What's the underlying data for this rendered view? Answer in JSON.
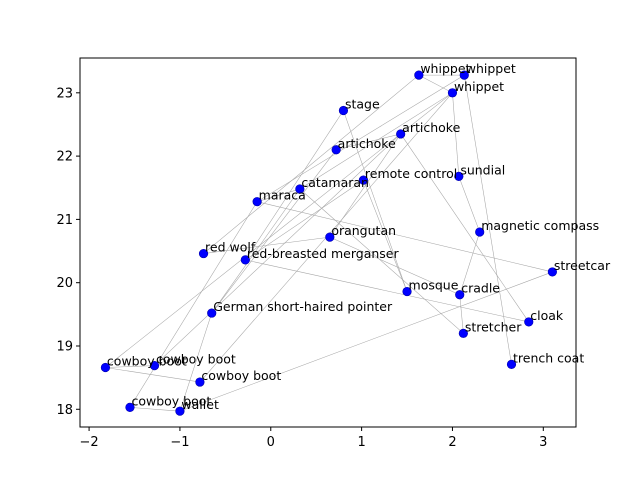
{
  "chart_data": {
    "type": "scatter",
    "title": "",
    "xlabel": "",
    "ylabel": "",
    "xlim": [
      -2.1,
      3.36
    ],
    "ylim": [
      17.72,
      23.55
    ],
    "xticks": [
      -2,
      -1,
      0,
      1,
      2,
      3
    ],
    "yticks": [
      18,
      19,
      20,
      21,
      22,
      23
    ],
    "grid": false,
    "marker_color": "#0000ff",
    "edge_color": "#a6a6a6",
    "points": [
      {
        "label": "whippet",
        "x": 1.63,
        "y": 23.28
      },
      {
        "label": "whippet",
        "x": 2.13,
        "y": 23.28
      },
      {
        "label": "whippet",
        "x": 2.0,
        "y": 23.0
      },
      {
        "label": "stage",
        "x": 0.8,
        "y": 22.72
      },
      {
        "label": "artichoke",
        "x": 1.43,
        "y": 22.35
      },
      {
        "label": "artichoke",
        "x": 0.72,
        "y": 22.1
      },
      {
        "label": "remote control",
        "x": 1.02,
        "y": 21.62
      },
      {
        "label": "sundial",
        "x": 2.07,
        "y": 21.68
      },
      {
        "label": "catamaran",
        "x": 0.32,
        "y": 21.48
      },
      {
        "label": "maraca",
        "x": -0.15,
        "y": 21.28
      },
      {
        "label": "magnetic compass",
        "x": 2.3,
        "y": 20.8
      },
      {
        "label": "orangutan",
        "x": 0.65,
        "y": 20.72
      },
      {
        "label": "red wolf",
        "x": -0.74,
        "y": 20.46
      },
      {
        "label": "red-breasted merganser",
        "x": -0.28,
        "y": 20.36
      },
      {
        "label": "streetcar",
        "x": 3.1,
        "y": 20.17
      },
      {
        "label": "mosque",
        "x": 1.5,
        "y": 19.86
      },
      {
        "label": "cradle",
        "x": 2.08,
        "y": 19.81
      },
      {
        "label": "German short-haired pointer",
        "x": -0.65,
        "y": 19.52
      },
      {
        "label": "cloak",
        "x": 2.84,
        "y": 19.38
      },
      {
        "label": "stretcher",
        "x": 2.12,
        "y": 19.2
      },
      {
        "label": "trench coat",
        "x": 2.65,
        "y": 18.71
      },
      {
        "label": "cowboy boot",
        "x": -1.82,
        "y": 18.66
      },
      {
        "label": "cowboy boot",
        "x": -1.28,
        "y": 18.69
      },
      {
        "label": "cowboy boot",
        "x": -0.78,
        "y": 18.43
      },
      {
        "label": "cowboy boot",
        "x": -1.55,
        "y": 18.03
      },
      {
        "label": "wallet",
        "x": -1.0,
        "y": 17.97
      }
    ],
    "edges": [
      [
        0,
        2
      ],
      [
        0,
        1
      ],
      [
        1,
        20
      ],
      [
        2,
        8
      ],
      [
        2,
        23
      ],
      [
        0,
        12
      ],
      [
        1,
        9
      ],
      [
        3,
        15
      ],
      [
        3,
        13
      ],
      [
        4,
        22
      ],
      [
        4,
        5
      ],
      [
        5,
        17
      ],
      [
        6,
        15
      ],
      [
        6,
        13
      ],
      [
        7,
        10
      ],
      [
        7,
        2
      ],
      [
        8,
        9
      ],
      [
        8,
        17
      ],
      [
        9,
        24
      ],
      [
        9,
        14
      ],
      [
        10,
        16
      ],
      [
        11,
        16
      ],
      [
        11,
        4
      ],
      [
        12,
        11
      ],
      [
        14,
        25
      ],
      [
        16,
        19
      ],
      [
        18,
        13
      ],
      [
        18,
        4
      ],
      [
        19,
        8
      ],
      [
        21,
        22
      ],
      [
        21,
        23
      ],
      [
        21,
        2
      ],
      [
        24,
        25
      ],
      [
        25,
        17
      ]
    ]
  }
}
